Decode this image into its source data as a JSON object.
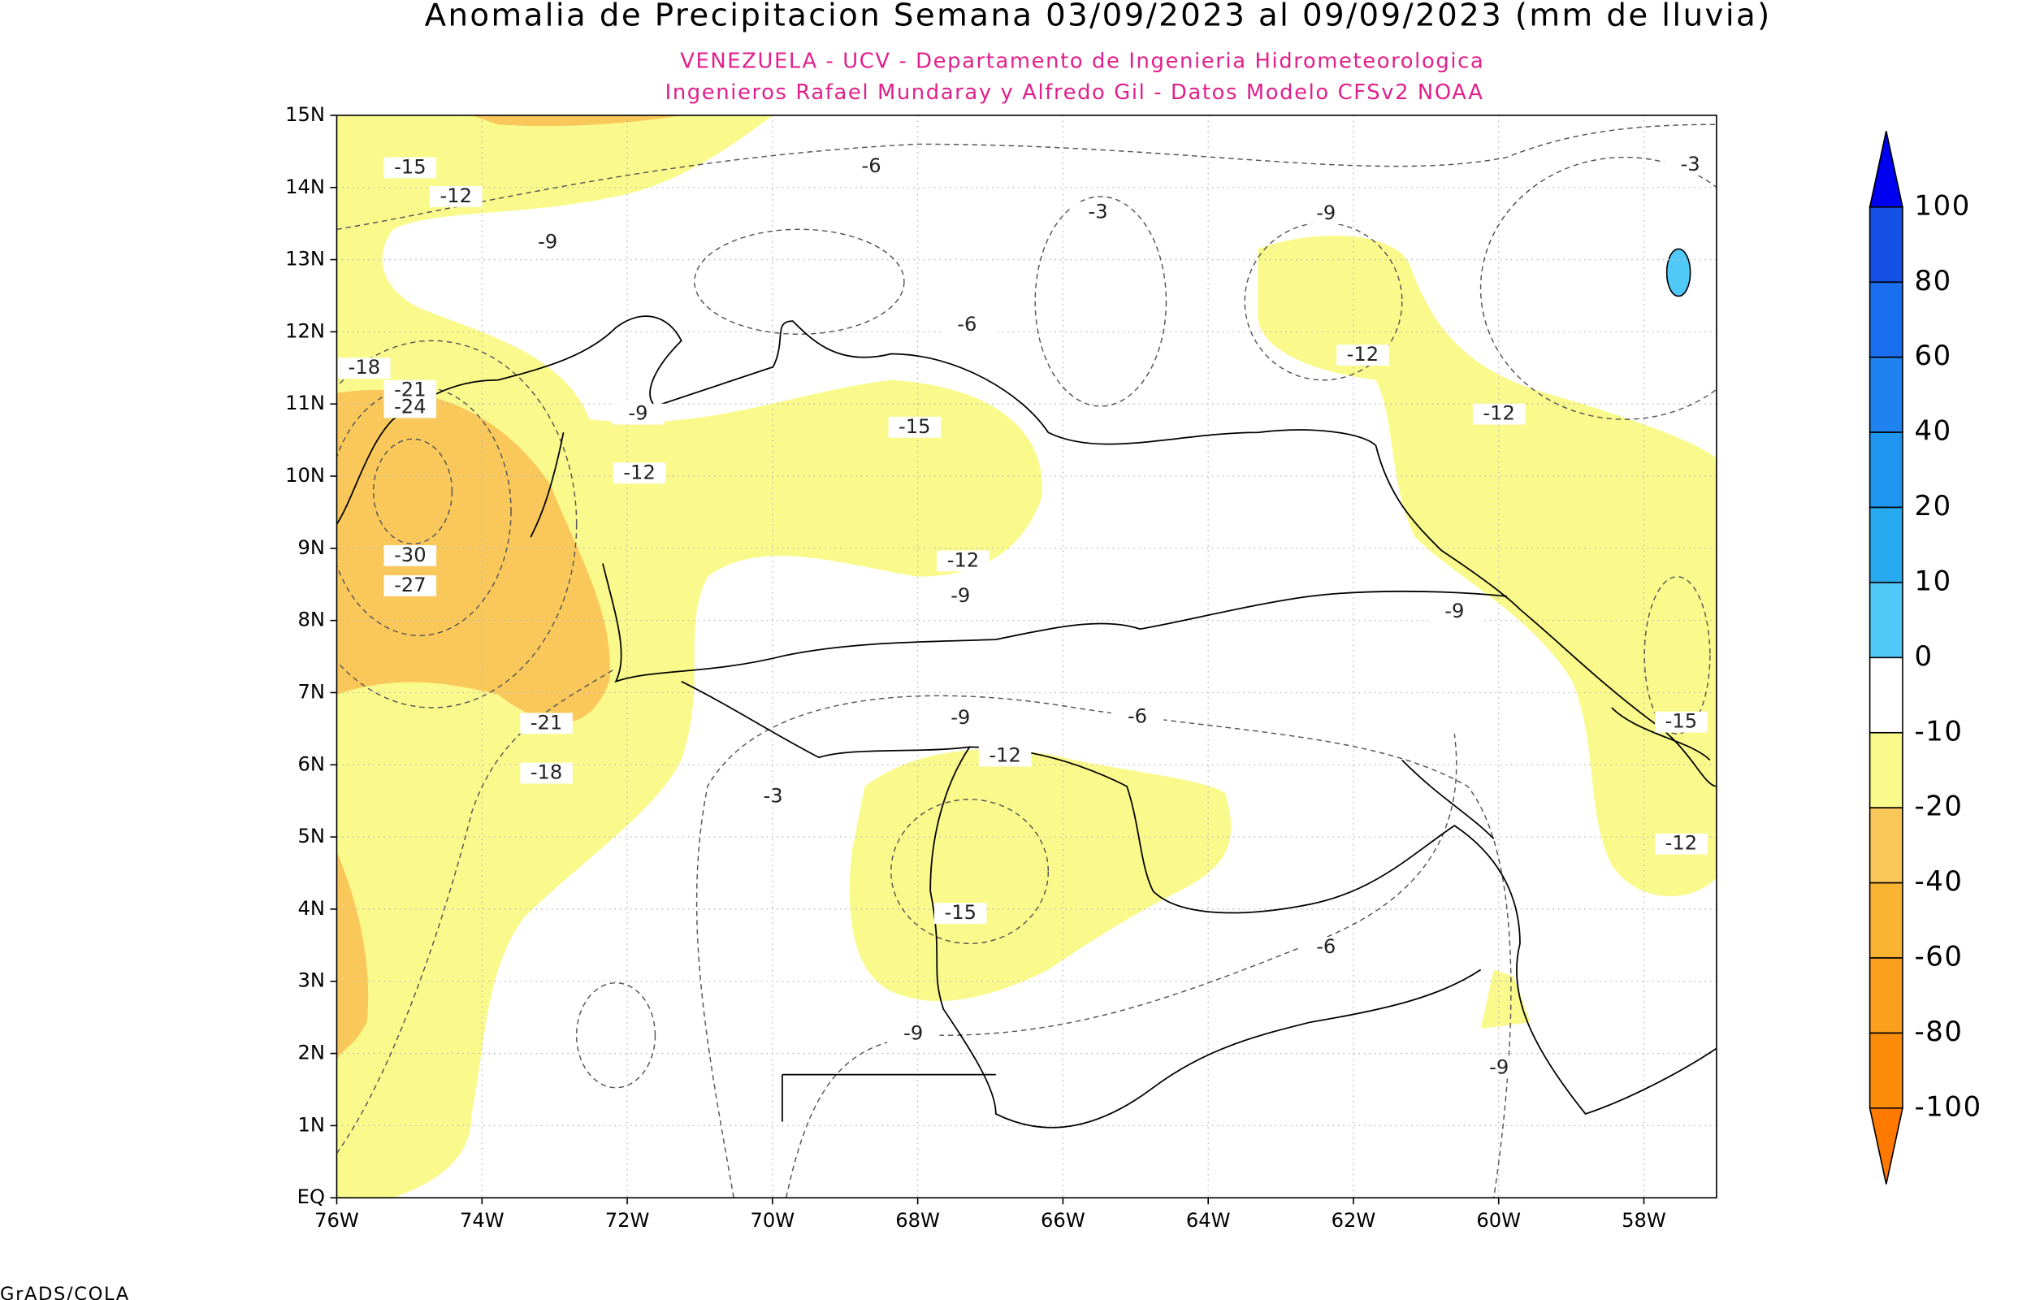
{
  "map": {
    "title": "Anomalia de Precipitacion Semana 03/09/2023 al 09/09/2023 (mm de lluvia)",
    "subtitle_1": "VENEZUELA - UCV - Departamento de Ingenieria Hidrometeorologica",
    "subtitle_2": "Ingenieros Rafael Mundaray y Alfredo Gil - Datos Modelo CFSv2 NOAA",
    "lat_labels": [
      "15N",
      "14N",
      "13N",
      "12N",
      "11N",
      "10N",
      "9N",
      "8N",
      "7N",
      "6N",
      "5N",
      "4N",
      "3N",
      "2N",
      "1N",
      "EQ"
    ],
    "lon_labels": [
      "76W",
      "74W",
      "72W",
      "70W",
      "68W",
      "66W",
      "64W",
      "62W",
      "60W",
      "58W"
    ],
    "contour_labels": [
      -15,
      -12,
      -9,
      -6,
      -3,
      -9,
      -3,
      -6,
      -12,
      -18,
      -21,
      -24,
      -9,
      -15,
      -12,
      -12,
      -30,
      -27,
      -12,
      -9,
      -9,
      -21,
      -9,
      -6,
      -15,
      -18,
      -12,
      -3,
      -12,
      -15,
      -6,
      -9,
      -9
    ],
    "colorbar": {
      "levels": [
        100,
        80,
        60,
        40,
        20,
        10,
        0,
        -10,
        -20,
        -40,
        -60,
        -80,
        -100
      ],
      "colors": [
        "#0000f0",
        "#1450e6",
        "#1a6ef0",
        "#1e82f0",
        "#1e96f0",
        "#28aaf0",
        "#50c8f8",
        "#ffffff",
        "#fafa8c",
        "#fac85a",
        "#fab432",
        "#faa01e",
        "#fa8c0a",
        "#ff7800"
      ]
    },
    "footer": "GrADS/COLA"
  }
}
